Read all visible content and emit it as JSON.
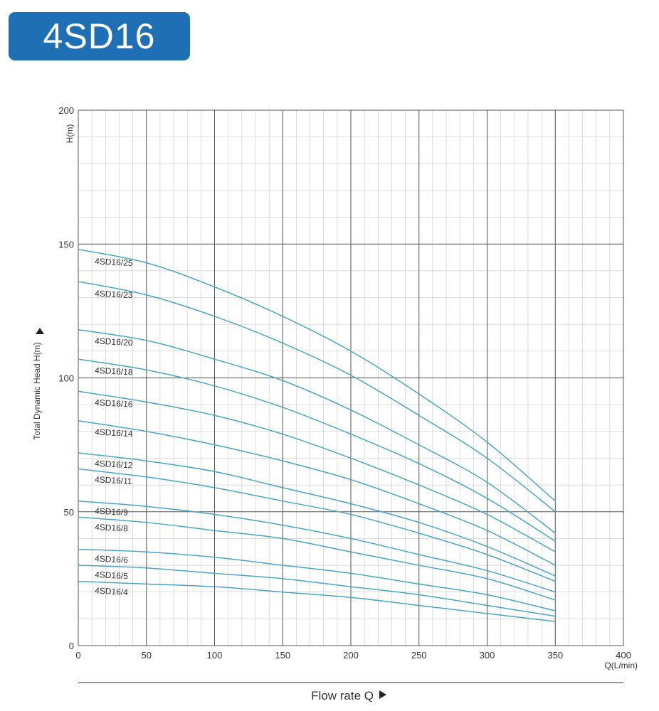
{
  "header": {
    "title": "4SD16"
  },
  "chart_data": {
    "type": "line",
    "ylabel": "Total Dynamic Head H(m)",
    "yunit": "H(m)",
    "xunit": "Q(L/min)",
    "xlabel": "Flow rate Q",
    "xlim": [
      0,
      400
    ],
    "ylim": [
      0,
      200
    ],
    "xticks": [
      0,
      50,
      100,
      150,
      200,
      250,
      300,
      350,
      400
    ],
    "yticks": [
      0,
      50,
      100,
      150,
      200
    ],
    "grid": true,
    "line_color": "#4aa6c4",
    "x": [
      0,
      50,
      100,
      150,
      200,
      250,
      300,
      350
    ],
    "series": [
      {
        "name": "4SD16/25",
        "values": [
          148,
          143,
          134,
          123,
          110,
          94,
          76,
          54
        ]
      },
      {
        "name": "4SD16/23",
        "values": [
          136,
          131,
          123,
          113,
          101,
          86,
          70,
          50
        ]
      },
      {
        "name": "4SD16/20",
        "values": [
          118,
          114,
          107,
          99,
          88,
          75,
          61,
          42
        ]
      },
      {
        "name": "4SD16/18",
        "values": [
          107,
          103,
          97,
          89,
          79,
          68,
          55,
          39
        ]
      },
      {
        "name": "4SD16/16",
        "values": [
          95,
          91,
          86,
          79,
          70,
          60,
          49,
          35
        ]
      },
      {
        "name": "4SD16/14",
        "values": [
          84,
          80,
          75,
          69,
          62,
          53,
          43,
          30
        ]
      },
      {
        "name": "4SD16/12",
        "values": [
          72,
          69,
          65,
          59,
          53,
          46,
          37,
          26
        ]
      },
      {
        "name": "4SD16/11",
        "values": [
          66,
          63,
          59,
          54,
          49,
          42,
          34,
          24
        ]
      },
      {
        "name": "4SD16/9",
        "values": [
          54,
          52,
          49,
          45,
          40,
          34,
          28,
          20
        ]
      },
      {
        "name": "4SD16/8",
        "values": [
          48,
          46,
          43,
          40,
          35,
          30,
          25,
          17
        ]
      },
      {
        "name": "4SD16/6",
        "values": [
          36,
          35,
          33,
          30,
          27,
          23,
          19,
          13
        ]
      },
      {
        "name": "4SD16/5",
        "values": [
          30,
          29,
          27,
          25,
          22,
          19,
          15,
          11
        ]
      },
      {
        "name": "4SD16/4",
        "values": [
          24,
          23,
          22,
          20,
          18,
          15,
          12,
          9
        ]
      }
    ]
  }
}
